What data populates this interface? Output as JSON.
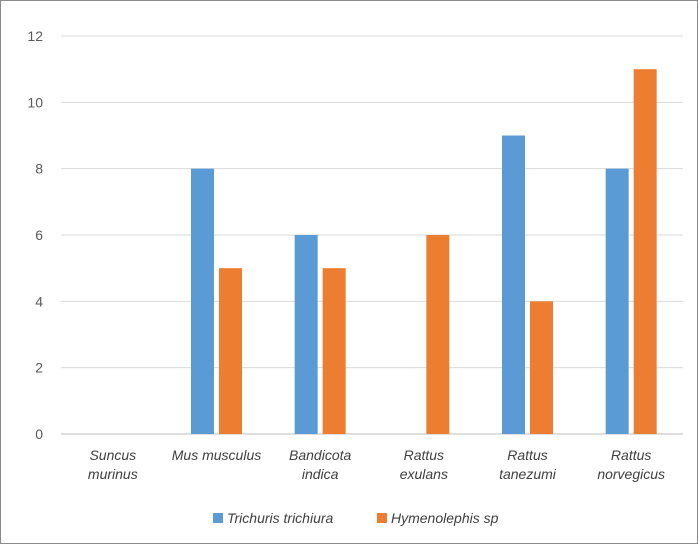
{
  "chart_data": {
    "type": "bar",
    "categories": [
      [
        "Suncus",
        "murinus"
      ],
      [
        "Mus musculus"
      ],
      [
        "Bandicota",
        "indica"
      ],
      [
        "Rattus",
        "exulans"
      ],
      [
        "Rattus",
        "tanezumi"
      ],
      [
        "Rattus",
        "norvegicus"
      ]
    ],
    "series": [
      {
        "name": "Trichuris trichiura",
        "color": "#5b9bd5",
        "values": [
          0,
          8,
          6,
          0,
          9,
          8
        ]
      },
      {
        "name": "Hymenolephis sp",
        "color": "#ed7d31",
        "values": [
          0,
          5,
          5,
          6,
          4,
          11
        ]
      }
    ],
    "ylim": [
      0,
      12
    ],
    "yticks": [
      "0",
      "2",
      "4",
      "6",
      "8",
      "10",
      "12"
    ],
    "grid": true,
    "legend": "bottom",
    "title": "",
    "xlabel": "",
    "ylabel": ""
  }
}
